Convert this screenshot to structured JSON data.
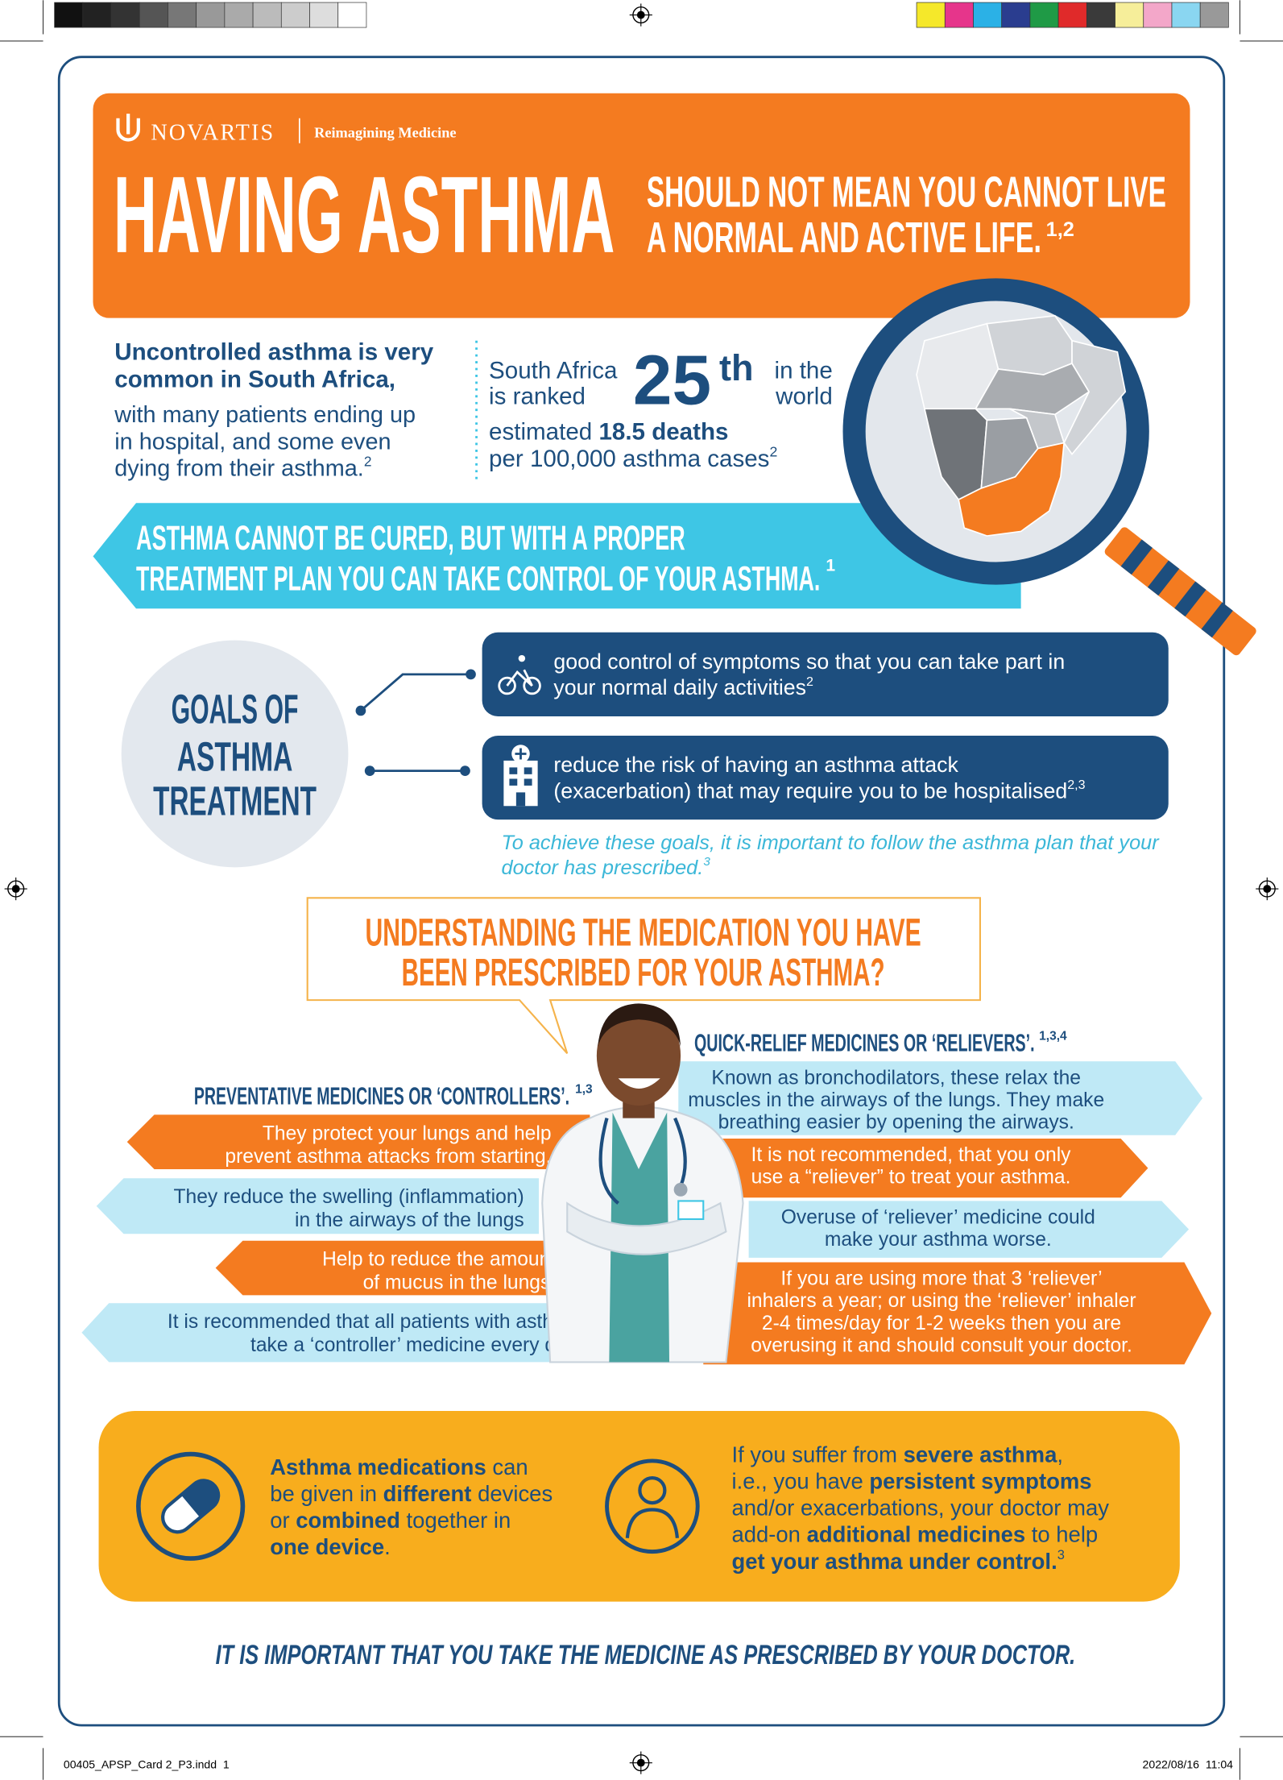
{
  "print_marks": {
    "file": "00405_APSP_Card 2_P3.indd  1",
    "date": "2022/08/16  11:04"
  },
  "header": {
    "brand": "NOVARTIS",
    "tagline": "Reimagining Medicine",
    "title": "HAVING ASTHMA",
    "subtitle_lines": [
      "SHOULD NOT MEAN YOU CANNOT LIVE",
      "A NORMAL AND ACTIVE LIFE."
    ],
    "subtitle_ref": "1,2"
  },
  "intro": {
    "bold_lines": [
      "Uncontrolled asthma is very",
      "common in South Africa,"
    ],
    "lines": [
      "with many patients ending up",
      "in hospital, and some even",
      "dying from their asthma."
    ],
    "ref": "2"
  },
  "ranking": {
    "left_lines": [
      "South Africa",
      "is ranked"
    ],
    "rank": "25",
    "rank_suffix": "th",
    "right_lines": [
      "in the",
      "world"
    ],
    "deaths_lines": [
      [
        {
          "text": "estimated "
        },
        {
          "text": "18.5 deaths",
          "bold": true
        }
      ],
      [
        {
          "text": "per 100,000 asthma cases"
        }
      ]
    ],
    "ref": "2"
  },
  "banner": {
    "lines": [
      "ASTHMA CANNOT BE CURED, BUT WITH A PROPER",
      "TREATMENT PLAN YOU CAN TAKE CONTROL OF YOUR ASTHMA."
    ],
    "ref": "1"
  },
  "goals": {
    "title_lines": [
      "GOALS OF",
      "ASTHMA",
      "TREATMENT"
    ],
    "items": [
      {
        "lines": [
          "good control of symptoms so that you can take part in",
          "your normal daily activities"
        ],
        "ref": "2"
      },
      {
        "lines": [
          "reduce the risk of having an asthma attack",
          "(exacerbation) that may require you to be hospitalised"
        ],
        "ref": "2,3"
      }
    ],
    "note_lines": [
      "To achieve these goals, it is important to follow the asthma plan that your",
      "doctor has prescribed."
    ],
    "note_ref": "3"
  },
  "medication": {
    "question_lines": [
      "UNDERSTANDING THE MEDICATION YOU HAVE",
      "BEEN PRESCRIBED FOR YOUR ASTHMA?"
    ],
    "controllers": {
      "heading": "PREVENTATIVE MEDICINES OR ‘CONTROLLERS’.",
      "ref": "1,3",
      "points": [
        [
          "They protect your lungs and help",
          "prevent asthma attacks from starting."
        ],
        [
          "They reduce the swelling (inflammation)",
          "in the airways of the lungs"
        ],
        [
          "Help to reduce the amount",
          "of mucus in the lungs."
        ],
        [
          "It is recommended that all patients with asthma",
          "take a ‘controller’ medicine every day."
        ]
      ]
    },
    "relievers": {
      "heading": "QUICK-RELIEF MEDICINES OR ‘RELIEVERS’.",
      "ref": "1,3,4",
      "points": [
        [
          "Known as bronchodilators, these relax the",
          "muscles in the airways of the lungs. They make",
          "breathing easier by opening the airways."
        ],
        [
          "It is not recommended, that you only",
          "use a “reliever” to treat your asthma."
        ],
        [
          "Overuse of ‘reliever’ medicine could",
          "make your asthma worse."
        ],
        [
          "If you are using more that 3 ‘reliever’",
          "inhalers a year; or using the ‘reliever’ inhaler",
          "2-4 times/day for 1-2 weeks then you are",
          "overusing it and should consult your doctor."
        ]
      ]
    }
  },
  "info": {
    "left_lines": [
      [
        {
          "text": "Asthma medications",
          "bold": true
        },
        {
          "text": " can"
        }
      ],
      [
        {
          "text": "be given in "
        },
        {
          "text": "different",
          "bold": true
        },
        {
          "text": " devices"
        }
      ],
      [
        {
          "text": "or "
        },
        {
          "text": "combined",
          "bold": true
        },
        {
          "text": " together in"
        }
      ],
      [
        {
          "text": "one device",
          "bold": true
        },
        {
          "text": "."
        }
      ]
    ],
    "right_lines": [
      [
        {
          "text": "If you suffer from "
        },
        {
          "text": "severe asthma",
          "bold": true
        },
        {
          "text": ","
        }
      ],
      [
        {
          "text": "i.e., you have "
        },
        {
          "text": "persistent symptoms",
          "bold": true
        }
      ],
      [
        {
          "text": "and/or exacerbations, your doctor may"
        }
      ],
      [
        {
          "text": "add-on "
        },
        {
          "text": "additional medicines",
          "bold": true
        },
        {
          "text": " to help"
        }
      ],
      [
        {
          "text": "get your asthma under control.",
          "bold": true
        }
      ]
    ],
    "right_ref": "3"
  },
  "footer": "IT IS IMPORTANT THAT YOU TAKE THE MEDICINE AS PRESCRIBED BY YOUR DOCTOR."
}
